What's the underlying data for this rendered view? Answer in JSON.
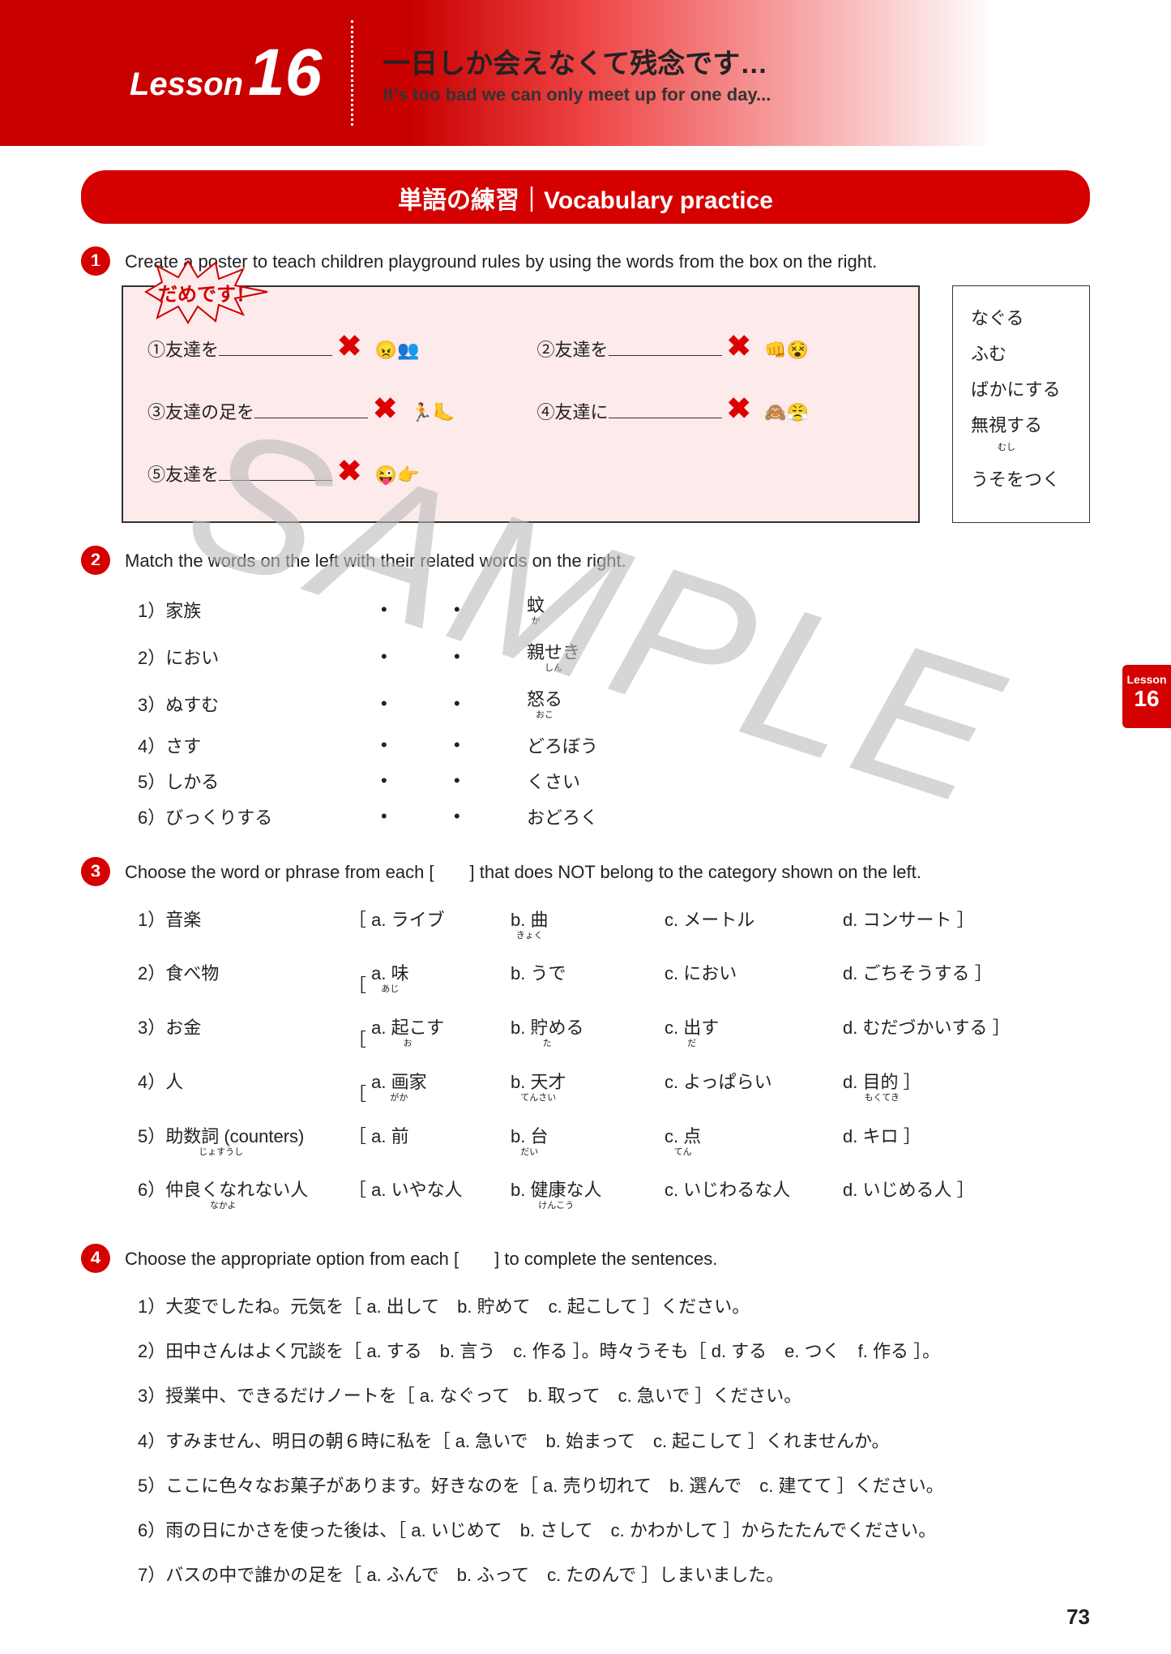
{
  "header": {
    "lesson_word": "Lesson",
    "lesson_num": "16",
    "title_jp": "一日しか会えなくて残念です…",
    "title_en": "It's too bad we can only meet up for one day..."
  },
  "banner": "単語の練習｜Vocabulary practice",
  "watermark": "SAMPLE",
  "side_tab": {
    "label": "Lesson",
    "num": "16"
  },
  "page_num": "73",
  "q1": {
    "num": "1",
    "text": "Create a poster to teach children playground rules by using the words from the box on the right.",
    "burst": "だめです！",
    "prompts": [
      "①友達を",
      "②友達を",
      "③友達の足を",
      "④友達に",
      "⑤友達を"
    ],
    "wordbox": [
      "なぐる",
      "ふむ",
      "ばかにする",
      "無視する",
      "うそをつく"
    ],
    "wordbox_furi": [
      "",
      "",
      "",
      "むし",
      ""
    ]
  },
  "q2": {
    "num": "2",
    "text": "Match the words on the left with their related words on the right.",
    "left": [
      "1）家族",
      "2）におい",
      "3）ぬすむ",
      "4）さす",
      "5）しかる",
      "6）びっくりする"
    ],
    "right": [
      "蚊",
      "親せき",
      "怒る",
      "どろぼう",
      "くさい",
      "おどろく"
    ],
    "right_furi": [
      "か",
      "しん",
      "おこ",
      "",
      "",
      ""
    ]
  },
  "q3": {
    "num": "3",
    "text": "Choose the word or phrase from each [　　] that does NOT belong to the category shown on the left.",
    "rows": [
      {
        "cat": "1）音楽",
        "a": "a. ライブ",
        "b": "b. 曲",
        "b_f": "きょく",
        "c": "c. メートル",
        "d": "d. コンサート ］"
      },
      {
        "cat": "2）食べ物",
        "a": "a. 味",
        "a_f": "あじ",
        "b": "b. うで",
        "c": "c. におい",
        "d": "d. ごちそうする ］"
      },
      {
        "cat": "3）お金",
        "a": "a. 起こす",
        "a_f": "お",
        "b": "b. 貯める",
        "b_f": "た",
        "c": "c. 出す",
        "c_f": "だ",
        "d": "d. むだづかいする ］"
      },
      {
        "cat": "4）人",
        "a": "a. 画家",
        "a_f": "がか",
        "b": "b. 天才",
        "b_f": "てんさい",
        "c": "c. よっぱらい",
        "d": "d. 目的 ］",
        "d_f": "もくてき"
      },
      {
        "cat": "5）助数詞 (counters)",
        "cat_f": "じょすうし",
        "a": "a. 前",
        "b": "b. 台",
        "b_f": "だい",
        "c": "c. 点",
        "c_f": "てん",
        "d": "d. キロ ］"
      },
      {
        "cat": "6）仲良くなれない人",
        "cat_f": "なかよ",
        "a": "a. いやな人",
        "b": "b. 健康な人",
        "b_f": "けんこう",
        "c": "c. いじわるな人",
        "d": "d. いじめる人 ］"
      }
    ]
  },
  "q4": {
    "num": "4",
    "text": "Choose the appropriate option from each [　　] to complete the sentences.",
    "lines": [
      "1）大変でしたね。元気を［ a. 出して　b. 貯めて　c. 起こして ］ください。",
      "2）田中さんはよく冗談を［ a. する　b. 言う　c. 作る ］。時々うそも［ d. する　e. つく　f. 作る ］。",
      "3）授業中、できるだけノートを［ a. なぐって　b. 取って　c. 急いで ］ください。",
      "4）すみません、明日の朝６時に私を［ a. 急いで　b. 始まって　c. 起こして ］くれませんか。",
      "5）ここに色々なお菓子があります。好きなのを［ a. 売り切れて　b. 選んで　c. 建てて ］ください。",
      "6）雨の日にかさを使った後は、［ a. いじめて　b. さして　c. かわかして ］からたたんでください。",
      "7）バスの中で誰かの足を［ a. ふんで　b. ふって　c. たのんで ］しまいました。"
    ]
  }
}
